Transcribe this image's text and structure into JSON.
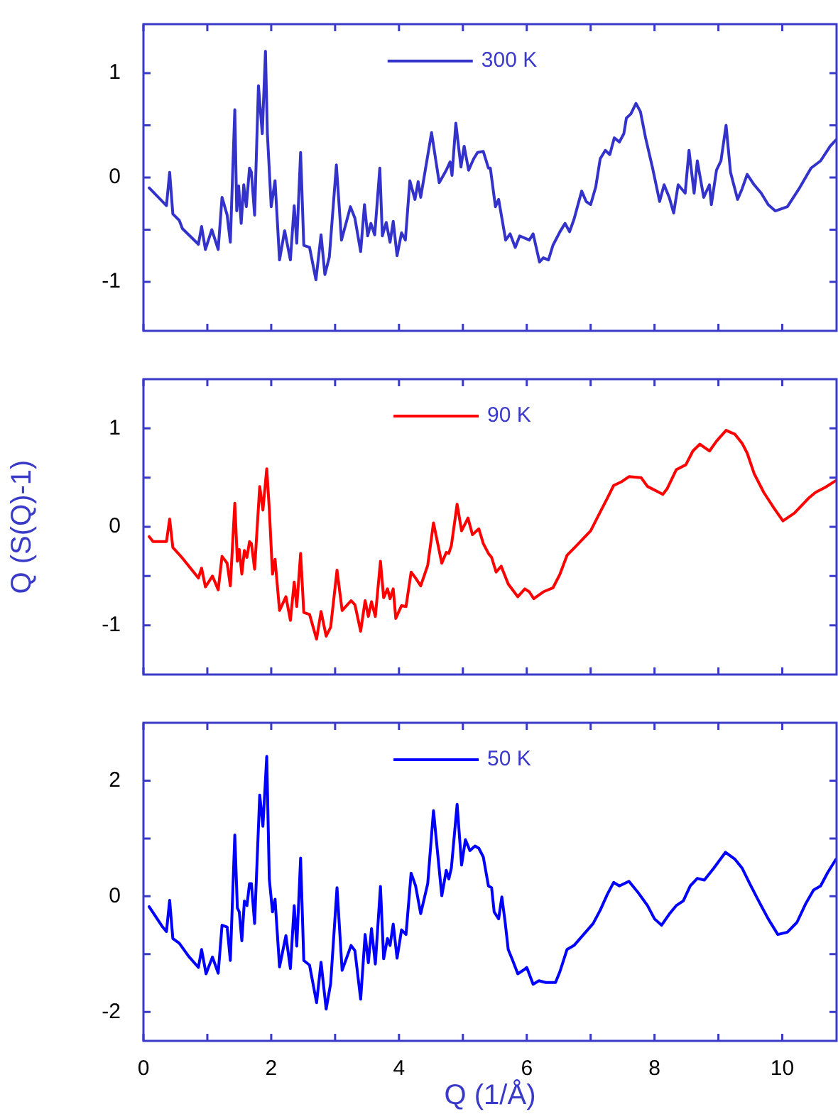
{
  "chart_data": [
    {
      "type": "line",
      "legend": "top",
      "tick_labels": "y",
      "xlim": [
        0,
        10.85
      ],
      "xticks": [
        {
          "value": 0,
          "label": null
        },
        {
          "value": 1,
          "label": null
        },
        {
          "value": 2,
          "label": null
        },
        {
          "value": 3,
          "label": null
        },
        {
          "value": 4,
          "label": null
        },
        {
          "value": 5,
          "label": null
        },
        {
          "value": 6,
          "label": null
        },
        {
          "value": 7,
          "label": null
        },
        {
          "value": 8,
          "label": null
        },
        {
          "value": 9,
          "label": null
        },
        {
          "value": 10,
          "label": null
        }
      ],
      "ylim": [
        -1.47,
        1.47
      ],
      "yticks": [
        -1,
        {
          "value": -0.5,
          "label": null
        },
        0,
        {
          "value": 0.5,
          "label": null
        },
        1
      ],
      "x": [
        0.09,
        0.36,
        0.41,
        0.46,
        0.56,
        0.61,
        0.86,
        0.91,
        0.97,
        1.07,
        1.17,
        1.23,
        1.31,
        1.36,
        1.43,
        1.46,
        1.49,
        1.53,
        1.57,
        1.61,
        1.66,
        1.69,
        1.74,
        1.8,
        1.86,
        1.91,
        1.94,
        2.0,
        2.06,
        2.13,
        2.21,
        2.3,
        2.36,
        2.4,
        2.46,
        2.51,
        2.6,
        2.7,
        2.78,
        2.84,
        2.91,
        3.02,
        3.1,
        3.24,
        3.31,
        3.4,
        3.46,
        3.51,
        3.56,
        3.62,
        3.7,
        3.74,
        3.8,
        3.86,
        3.91,
        3.97,
        4.04,
        4.1,
        4.17,
        4.25,
        4.3,
        4.34,
        4.51,
        4.63,
        4.74,
        4.8,
        4.83,
        4.89,
        4.97,
        5.02,
        5.09,
        5.17,
        5.23,
        5.32,
        5.4,
        5.43,
        5.51,
        5.56,
        5.67,
        5.74,
        5.82,
        5.89,
        6.04,
        6.1,
        6.2,
        6.26,
        6.34,
        6.41,
        6.52,
        6.6,
        6.67,
        6.74,
        6.86,
        6.93,
        7.0,
        7.08,
        7.15,
        7.23,
        7.3,
        7.37,
        7.45,
        7.52,
        7.56,
        7.63,
        7.71,
        7.78,
        7.86,
        7.97,
        8.08,
        8.15,
        8.23,
        8.3,
        8.37,
        8.48,
        8.54,
        8.62,
        8.67,
        8.77,
        8.86,
        8.89,
        8.97,
        9.04,
        9.12,
        9.19,
        9.3,
        9.37,
        9.45,
        9.56,
        9.67,
        9.78,
        9.89,
        10.08,
        10.26,
        10.45,
        10.6,
        10.75,
        10.84
      ],
      "series": [
        {
          "name": "300 K",
          "color": "#3333cc",
          "values": [
            -0.1,
            -0.27,
            0.05,
            -0.35,
            -0.41,
            -0.49,
            -0.64,
            -0.47,
            -0.69,
            -0.5,
            -0.69,
            -0.19,
            -0.36,
            -0.62,
            0.65,
            -0.32,
            -0.08,
            -0.44,
            -0.07,
            -0.28,
            0.09,
            0.05,
            -0.36,
            0.88,
            0.42,
            1.21,
            0.42,
            -0.28,
            -0.03,
            -0.79,
            -0.51,
            -0.79,
            -0.27,
            -0.63,
            0.24,
            -0.65,
            -0.67,
            -0.98,
            -0.55,
            -0.93,
            -0.76,
            0.12,
            -0.6,
            -0.28,
            -0.39,
            -0.71,
            -0.26,
            -0.56,
            -0.44,
            -0.55,
            0.09,
            -0.56,
            -0.43,
            -0.62,
            -0.42,
            -0.75,
            -0.53,
            -0.6,
            -0.03,
            -0.21,
            -0.04,
            -0.19,
            0.43,
            -0.05,
            0.07,
            0.15,
            0.02,
            0.52,
            0.1,
            0.3,
            0.07,
            0.18,
            0.24,
            0.25,
            0.09,
            0.09,
            -0.28,
            -0.21,
            -0.6,
            -0.54,
            -0.67,
            -0.56,
            -0.6,
            -0.54,
            -0.81,
            -0.77,
            -0.79,
            -0.65,
            -0.52,
            -0.44,
            -0.52,
            -0.4,
            -0.13,
            -0.23,
            -0.26,
            -0.09,
            0.18,
            0.26,
            0.22,
            0.38,
            0.34,
            0.42,
            0.57,
            0.61,
            0.71,
            0.63,
            0.38,
            0.09,
            -0.23,
            -0.07,
            -0.19,
            -0.34,
            -0.07,
            -0.15,
            0.26,
            -0.15,
            0.16,
            -0.19,
            -0.07,
            -0.26,
            0.07,
            0.16,
            0.5,
            0.05,
            -0.21,
            -0.11,
            0.03,
            -0.07,
            -0.15,
            -0.26,
            -0.32,
            -0.28,
            -0.11,
            0.09,
            0.16,
            0.3,
            0.36
          ]
        }
      ]
    },
    {
      "type": "line",
      "legend": "top",
      "tick_labels": "y",
      "ylabel": "Q (S(Q)-1)",
      "xlim": [
        0,
        10.85
      ],
      "xticks": [
        {
          "value": 0,
          "label": null
        },
        {
          "value": 1,
          "label": null
        },
        {
          "value": 2,
          "label": null
        },
        {
          "value": 3,
          "label": null
        },
        {
          "value": 4,
          "label": null
        },
        {
          "value": 5,
          "label": null
        },
        {
          "value": 6,
          "label": null
        },
        {
          "value": 7,
          "label": null
        },
        {
          "value": 8,
          "label": null
        },
        {
          "value": 9,
          "label": null
        },
        {
          "value": 10,
          "label": null
        }
      ],
      "ylim": [
        -1.5,
        1.5
      ],
      "yticks": [
        -1,
        {
          "value": -0.5,
          "label": null
        },
        0,
        {
          "value": 0.5,
          "label": null
        },
        1
      ],
      "x": [
        0.09,
        0.15,
        0.36,
        0.41,
        0.46,
        0.6,
        0.86,
        0.91,
        0.97,
        1.08,
        1.17,
        1.23,
        1.31,
        1.36,
        1.43,
        1.47,
        1.5,
        1.54,
        1.58,
        1.62,
        1.66,
        1.69,
        1.74,
        1.82,
        1.87,
        1.93,
        1.97,
        2.02,
        2.06,
        2.13,
        2.23,
        2.3,
        2.36,
        2.4,
        2.46,
        2.51,
        2.6,
        2.71,
        2.78,
        2.86,
        2.93,
        3.03,
        3.11,
        3.25,
        3.31,
        3.4,
        3.47,
        3.52,
        3.57,
        3.63,
        3.71,
        3.76,
        3.82,
        3.86,
        3.91,
        3.95,
        4.04,
        4.11,
        4.19,
        4.26,
        4.34,
        4.45,
        4.54,
        4.67,
        4.74,
        4.78,
        4.82,
        4.91,
        4.98,
        5.08,
        5.15,
        5.25,
        5.32,
        5.4,
        5.45,
        5.52,
        5.6,
        5.71,
        5.86,
        5.97,
        6.04,
        6.11,
        6.26,
        6.41,
        6.52,
        6.63,
        6.78,
        7.0,
        7.15,
        7.26,
        7.36,
        7.49,
        7.6,
        7.79,
        7.89,
        8.04,
        8.13,
        8.2,
        8.34,
        8.49,
        8.6,
        8.71,
        8.86,
        8.97,
        9.12,
        9.26,
        9.37,
        9.45,
        9.56,
        9.71,
        9.86,
        10.01,
        10.19,
        10.41,
        10.52,
        10.67,
        10.84
      ],
      "series": [
        {
          "name": "90 K",
          "color": "#ff0000",
          "values": [
            -0.1,
            -0.15,
            -0.15,
            0.08,
            -0.21,
            -0.31,
            -0.52,
            -0.42,
            -0.61,
            -0.5,
            -0.64,
            -0.3,
            -0.37,
            -0.6,
            0.24,
            -0.35,
            -0.23,
            -0.48,
            -0.24,
            -0.31,
            -0.15,
            -0.17,
            -0.43,
            0.41,
            0.17,
            0.59,
            0.18,
            -0.48,
            -0.33,
            -0.85,
            -0.71,
            -0.95,
            -0.56,
            -0.81,
            -0.27,
            -0.87,
            -0.89,
            -1.14,
            -0.86,
            -1.11,
            -1.02,
            -0.44,
            -0.85,
            -0.75,
            -0.79,
            -1.06,
            -0.75,
            -0.91,
            -0.76,
            -0.91,
            -0.35,
            -0.72,
            -0.63,
            -0.73,
            -0.63,
            -0.93,
            -0.8,
            -0.81,
            -0.46,
            -0.52,
            -0.6,
            -0.39,
            0.04,
            -0.37,
            -0.26,
            -0.27,
            -0.19,
            0.23,
            -0.04,
            0.09,
            -0.08,
            -0.02,
            -0.17,
            -0.27,
            -0.31,
            -0.46,
            -0.4,
            -0.58,
            -0.71,
            -0.63,
            -0.66,
            -0.73,
            -0.66,
            -0.62,
            -0.48,
            -0.29,
            -0.19,
            -0.04,
            0.15,
            0.29,
            0.42,
            0.46,
            0.51,
            0.5,
            0.41,
            0.36,
            0.33,
            0.39,
            0.58,
            0.63,
            0.77,
            0.84,
            0.77,
            0.87,
            0.98,
            0.94,
            0.85,
            0.75,
            0.54,
            0.35,
            0.2,
            0.06,
            0.14,
            0.29,
            0.35,
            0.4,
            0.47
          ]
        }
      ]
    },
    {
      "type": "line",
      "legend": "top",
      "xlabel": "Q (1/Å)",
      "xlim": [
        0,
        10.85
      ],
      "xticks": [
        0,
        {
          "value": 1,
          "label": null
        },
        2,
        {
          "value": 3,
          "label": null
        },
        4,
        {
          "value": 5,
          "label": null
        },
        6,
        {
          "value": 7,
          "label": null
        },
        8,
        {
          "value": 9,
          "label": null
        },
        10
      ],
      "ylim": [
        -2.5,
        3
      ],
      "yticks": [
        -2,
        {
          "value": -1,
          "label": null
        },
        0,
        {
          "value": 1,
          "label": null
        },
        2
      ],
      "x": [
        0.09,
        0.3,
        0.36,
        0.41,
        0.46,
        0.56,
        0.71,
        0.86,
        0.91,
        0.98,
        1.08,
        1.17,
        1.23,
        1.31,
        1.36,
        1.43,
        1.47,
        1.5,
        1.54,
        1.58,
        1.62,
        1.66,
        1.69,
        1.74,
        1.82,
        1.87,
        1.93,
        1.97,
        2.02,
        2.06,
        2.13,
        2.23,
        2.3,
        2.36,
        2.4,
        2.46,
        2.51,
        2.6,
        2.71,
        2.78,
        2.86,
        2.93,
        3.03,
        3.11,
        3.25,
        3.31,
        3.4,
        3.47,
        3.52,
        3.57,
        3.63,
        3.71,
        3.76,
        3.82,
        3.86,
        3.91,
        3.97,
        4.04,
        4.11,
        4.19,
        4.26,
        4.34,
        4.45,
        4.54,
        4.67,
        4.74,
        4.78,
        4.82,
        4.91,
        4.98,
        5.04,
        5.11,
        5.19,
        5.25,
        5.32,
        5.4,
        5.45,
        5.49,
        5.56,
        5.61,
        5.66,
        5.71,
        5.78,
        5.86,
        5.97,
        6.0,
        6.1,
        6.19,
        6.3,
        6.45,
        6.52,
        6.63,
        6.74,
        6.89,
        7.04,
        7.15,
        7.26,
        7.36,
        7.45,
        7.6,
        7.74,
        7.89,
        8.0,
        8.11,
        8.23,
        8.34,
        8.45,
        8.56,
        8.67,
        8.78,
        8.93,
        9.11,
        9.26,
        9.37,
        9.49,
        9.63,
        9.78,
        9.93,
        10.08,
        10.23,
        10.37,
        10.49,
        10.6,
        10.71,
        10.84
      ],
      "series": [
        {
          "name": "50 K",
          "color": "#0000ff",
          "values": [
            -0.18,
            -0.53,
            -0.61,
            -0.07,
            -0.73,
            -0.81,
            -1.04,
            -1.23,
            -0.92,
            -1.34,
            -1.05,
            -1.33,
            -0.5,
            -0.53,
            -1.11,
            1.06,
            -0.2,
            -0.27,
            -0.77,
            -0.08,
            -0.16,
            0.22,
            0.22,
            -0.47,
            1.75,
            1.21,
            2.42,
            0.3,
            -0.27,
            -0.05,
            -1.22,
            -0.68,
            -1.25,
            -0.16,
            -0.86,
            0.66,
            -1.11,
            -1.19,
            -1.84,
            -1.14,
            -1.95,
            -1.51,
            0.15,
            -1.28,
            -0.85,
            -0.94,
            -1.78,
            -0.66,
            -1.15,
            -0.56,
            -1.17,
            0.17,
            -1.08,
            -0.73,
            -0.85,
            -0.48,
            -1.07,
            -0.58,
            -0.66,
            0.4,
            0.18,
            -0.3,
            0.22,
            1.48,
            0.01,
            0.45,
            0.3,
            0.49,
            1.59,
            0.54,
            0.98,
            0.79,
            0.87,
            0.83,
            0.68,
            0.18,
            0.15,
            -0.27,
            -0.39,
            -0.01,
            -0.43,
            -0.92,
            -1.11,
            -1.34,
            -1.26,
            -1.23,
            -1.52,
            -1.46,
            -1.49,
            -1.49,
            -1.3,
            -0.92,
            -0.85,
            -0.66,
            -0.47,
            -0.24,
            0.03,
            0.24,
            0.18,
            0.26,
            0.07,
            -0.16,
            -0.39,
            -0.5,
            -0.31,
            -0.16,
            -0.08,
            0.18,
            0.31,
            0.28,
            0.49,
            0.76,
            0.64,
            0.49,
            0.22,
            -0.08,
            -0.39,
            -0.66,
            -0.62,
            -0.45,
            -0.12,
            0.11,
            0.18,
            0.41,
            0.64
          ]
        }
      ]
    }
  ]
}
